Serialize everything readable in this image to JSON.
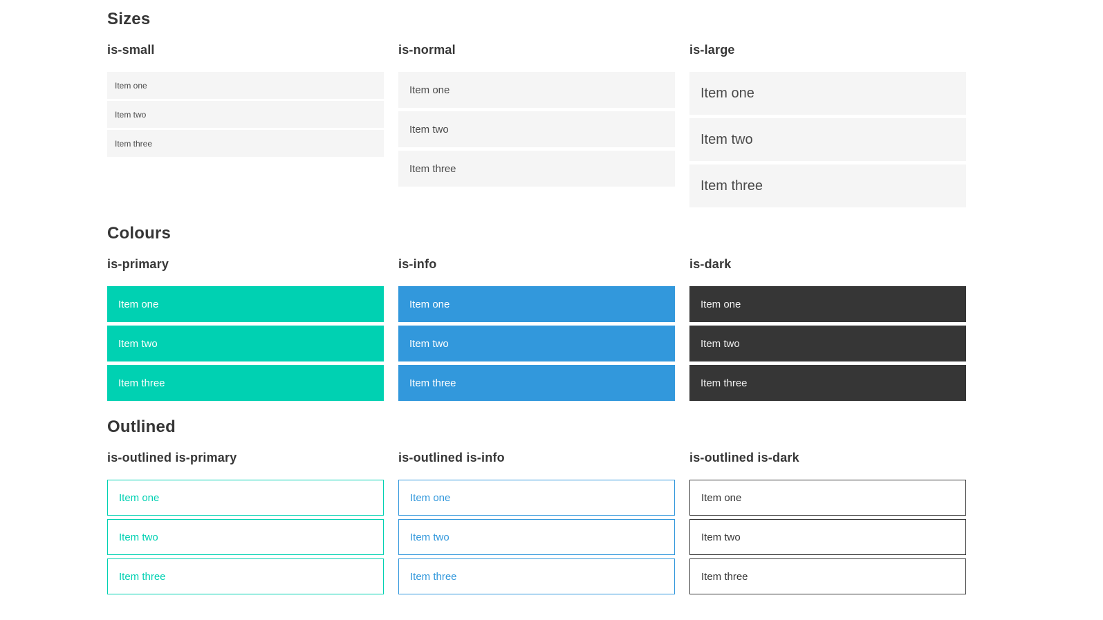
{
  "colors": {
    "primary": "#00d1b2",
    "info": "#3298dc",
    "dark": "#363636",
    "neutral_bg": "#f5f5f5",
    "neutral_text": "#4a4a4a",
    "heading": "#363636",
    "white_text": "#ffffff"
  },
  "sections": [
    {
      "title": "Sizes",
      "groups": [
        {
          "label": "is-small",
          "items": [
            "Item one",
            "Item two",
            "Item three"
          ]
        },
        {
          "label": "is-normal",
          "items": [
            "Item one",
            "Item two",
            "Item three"
          ]
        },
        {
          "label": "is-large",
          "items": [
            "Item one",
            "Item two",
            "Item three"
          ]
        }
      ]
    },
    {
      "title": "Colours",
      "groups": [
        {
          "label": "is-primary",
          "items": [
            "Item one",
            "Item two",
            "Item three"
          ]
        },
        {
          "label": "is-info",
          "items": [
            "Item one",
            "Item two",
            "Item three"
          ]
        },
        {
          "label": "is-dark",
          "items": [
            "Item one",
            "Item two",
            "Item three"
          ]
        }
      ]
    },
    {
      "title": "Outlined",
      "groups": [
        {
          "label": "is-outlined is-primary",
          "items": [
            "Item one",
            "Item two",
            "Item three"
          ]
        },
        {
          "label": "is-outlined is-info",
          "items": [
            "Item one",
            "Item two",
            "Item three"
          ]
        },
        {
          "label": "is-outlined is-dark",
          "items": [
            "Item one",
            "Item two",
            "Item three"
          ]
        }
      ]
    }
  ]
}
